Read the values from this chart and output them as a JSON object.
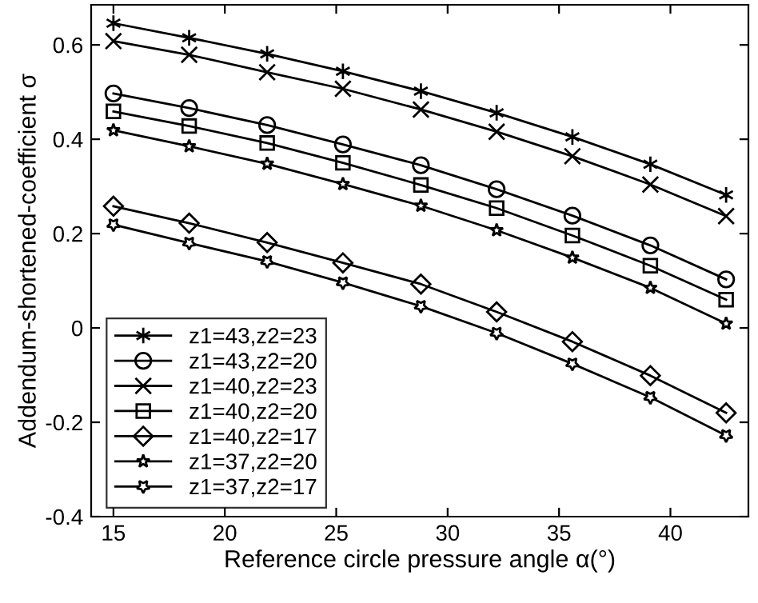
{
  "chart_data": {
    "type": "line",
    "xlabel": "Reference circle pressure angle α(°)",
    "ylabel": "Addendum-shortened-coefficient σ",
    "x": [
      15,
      18.4,
      21.9,
      25.3,
      28.8,
      32.2,
      35.6,
      39.1,
      42.5
    ],
    "series": [
      {
        "name": "z1=43,z2=23",
        "color": "#000000",
        "marker": "cross",
        "values": [
          0.646,
          0.615,
          0.581,
          0.544,
          0.502,
          0.456,
          0.405,
          0.347,
          0.282
        ]
      },
      {
        "name": "z1=43,z2=20",
        "color": "#000000",
        "marker": "circle",
        "values": [
          0.497,
          0.466,
          0.43,
          0.389,
          0.345,
          0.294,
          0.238,
          0.175,
          0.103
        ]
      },
      {
        "name": "z1=40,z2=23",
        "color": "#000000",
        "marker": "cross",
        "values": [
          0.608,
          0.579,
          0.542,
          0.507,
          0.463,
          0.416,
          0.364,
          0.304,
          0.237
        ]
      },
      {
        "name": "z1=40,z2=20",
        "color": "#000000",
        "marker": "square",
        "values": [
          0.459,
          0.428,
          0.392,
          0.35,
          0.303,
          0.254,
          0.196,
          0.132,
          0.06
        ]
      },
      {
        "name": "z1=40,z2=17",
        "color": "#000000",
        "marker": "diamond",
        "values": [
          0.258,
          0.222,
          0.181,
          0.138,
          0.093,
          0.034,
          -0.029,
          -0.101,
          -0.18
        ]
      },
      {
        "name": "z1=37,z2=20",
        "color": "#000000",
        "marker": "star",
        "values": [
          0.419,
          0.385,
          0.348,
          0.305,
          0.259,
          0.207,
          0.149,
          0.085,
          0.009
        ]
      },
      {
        "name": "z1=37,z2=17",
        "color": "#000000",
        "marker": "star",
        "values": [
          0.219,
          0.18,
          0.141,
          0.096,
          0.046,
          -0.011,
          -0.076,
          -0.147,
          -0.228
        ]
      }
    ],
    "xlim": [
      14,
      43.5
    ],
    "xticks": [
      15,
      20,
      25,
      30,
      35,
      40
    ],
    "ylim": [
      -0.4,
      0.685
    ],
    "yticks": [
      -0.4,
      -0.2,
      0,
      0.2,
      0.4,
      0.6
    ],
    "grid": false,
    "legend": "bottom left",
    "line_style": "solid"
  }
}
